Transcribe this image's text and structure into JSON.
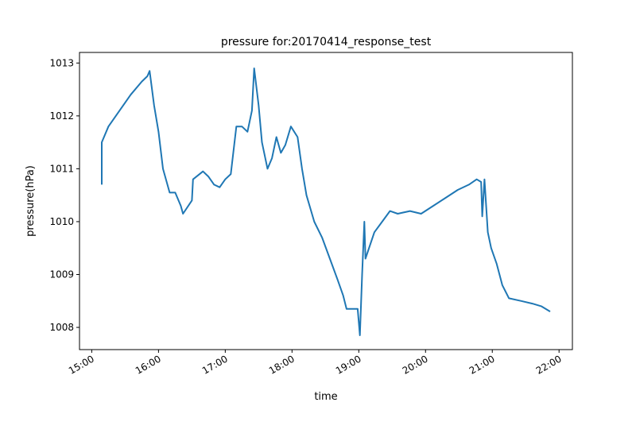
{
  "chart_data": {
    "type": "line",
    "title": "pressure for:20170414_response_test",
    "x_label": "time",
    "y_label": "pressure(hPa)",
    "color": "#1f77b4",
    "x": [
      "15:09",
      "15:09",
      "15:15",
      "15:25",
      "15:35",
      "15:45",
      "15:50",
      "15:52",
      "15:56",
      "16:00",
      "16:04",
      "16:10",
      "16:15",
      "16:20",
      "16:22",
      "16:30",
      "16:31",
      "16:40",
      "16:45",
      "16:50",
      "16:55",
      "17:00",
      "17:05",
      "17:10",
      "17:15",
      "17:20",
      "17:24",
      "17:26",
      "17:30",
      "17:33",
      "17:38",
      "17:42",
      "17:46",
      "17:50",
      "17:54",
      "17:59",
      "18:05",
      "18:09",
      "18:13",
      "18:20",
      "18:27",
      "18:34",
      "18:41",
      "18:46",
      "18:49",
      "18:59",
      "19:01",
      "19:03",
      "19:05",
      "19:06",
      "19:14",
      "19:21",
      "19:28",
      "19:35",
      "19:46",
      "19:56",
      "20:07",
      "20:18",
      "20:29",
      "20:39",
      "20:46",
      "20:50",
      "20:51",
      "20:53",
      "20:56",
      "20:59",
      "21:04",
      "21:09",
      "21:15",
      "21:26",
      "21:36",
      "21:44",
      "21:52"
    ],
    "values": [
      1010.7,
      1011.5,
      1011.8,
      1012.1,
      1012.4,
      1012.65,
      1012.75,
      1012.85,
      1012.2,
      1011.7,
      1011.0,
      1010.55,
      1010.55,
      1010.3,
      1010.15,
      1010.4,
      1010.8,
      1010.95,
      1010.85,
      1010.7,
      1010.65,
      1010.8,
      1010.9,
      1011.8,
      1011.8,
      1011.7,
      1012.1,
      1012.9,
      1012.2,
      1011.5,
      1011.0,
      1011.2,
      1011.6,
      1011.3,
      1011.45,
      1011.8,
      1011.6,
      1011.0,
      1010.5,
      1010.0,
      1009.7,
      1009.3,
      1008.9,
      1008.6,
      1008.35,
      1008.35,
      1007.85,
      1009.0,
      1010.0,
      1009.3,
      1009.8,
      1010.0,
      1010.2,
      1010.15,
      1010.2,
      1010.15,
      1010.3,
      1010.45,
      1010.6,
      1010.7,
      1010.8,
      1010.75,
      1010.1,
      1010.8,
      1009.8,
      1009.5,
      1009.2,
      1008.8,
      1008.55,
      1008.5,
      1008.45,
      1008.4,
      1008.3
    ],
    "xlim": [
      "14:49",
      "22:12"
    ],
    "xticks": [
      "15:00",
      "16:00",
      "17:00",
      "18:00",
      "19:00",
      "20:00",
      "21:00",
      "22:00"
    ],
    "ylim": [
      1007.58,
      1013.2
    ],
    "yticks": [
      1008,
      1009,
      1010,
      1011,
      1012,
      1013
    ]
  }
}
